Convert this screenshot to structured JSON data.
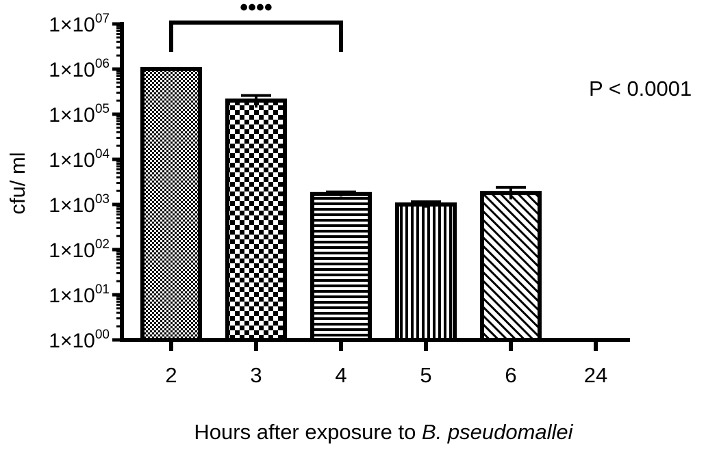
{
  "chart_data": {
    "type": "bar",
    "y_scale": "log",
    "categories": [
      "2",
      "3",
      "4",
      "5",
      "6",
      "24"
    ],
    "values": [
      1000000,
      200000,
      1700,
      1000,
      1800,
      0
    ],
    "error_upper": [
      1000000,
      260000,
      1900,
      1150,
      2400,
      0
    ],
    "error_lower": [
      1000000,
      140000,
      1500,
      850,
      1300,
      0
    ],
    "patterns": [
      "fine-checker",
      "checker",
      "horizontal-lines",
      "vertical-lines",
      "diagonal-lines",
      "none"
    ],
    "xlabel_prefix": "Hours after exposure to ",
    "xlabel_italic": "B. pseudomallei",
    "ylabel": "cfu/ ml",
    "ylim": [
      1,
      10000000
    ],
    "yticks": [
      {
        "value": 1,
        "base": "1×10",
        "exp": "00"
      },
      {
        "value": 10,
        "base": "1×10",
        "exp": "01"
      },
      {
        "value": 100,
        "base": "1×10",
        "exp": "02"
      },
      {
        "value": 1000,
        "base": "1×10",
        "exp": "03"
      },
      {
        "value": 10000,
        "base": "1×10",
        "exp": "04"
      },
      {
        "value": 100000,
        "base": "1×10",
        "exp": "05"
      },
      {
        "value": 1000000,
        "base": "1×10",
        "exp": "06"
      },
      {
        "value": 10000000,
        "base": "1×10",
        "exp": "07"
      }
    ],
    "significance": {
      "from": "2",
      "to": "4",
      "label": "••••"
    },
    "annotation": "P < 0.0001",
    "grid": false
  }
}
